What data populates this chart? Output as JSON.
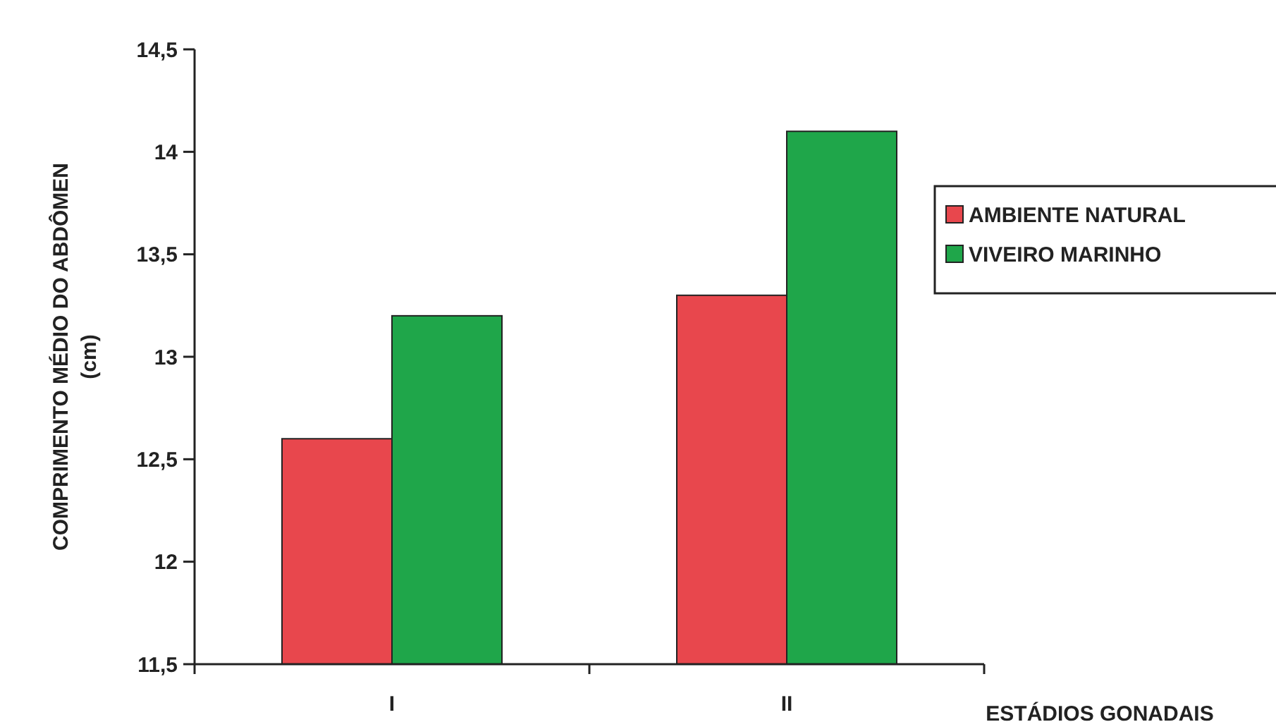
{
  "chart_data": {
    "type": "bar",
    "xlabel": "ESTÁDIOS GONADAIS",
    "ylabel": "COMPRIMENTO MÉDIO DO ABDÔMEN (cm)",
    "categories": [
      "I",
      "II"
    ],
    "series": [
      {
        "name": "AMBIENTE NATURAL",
        "color": "#e8474d",
        "values": [
          12.6,
          13.3
        ]
      },
      {
        "name": "VIVEIRO MARINHO",
        "color": "#1fa64a",
        "values": [
          13.2,
          14.1
        ]
      }
    ],
    "ylim": [
      11.5,
      14.5
    ],
    "yticks": [
      {
        "value": 11.5,
        "label": "11,5"
      },
      {
        "value": 12,
        "label": "12"
      },
      {
        "value": 12.5,
        "label": "12,5"
      },
      {
        "value": 13,
        "label": "13"
      },
      {
        "value": 13.5,
        "label": "13,5"
      },
      {
        "value": 14,
        "label": "14"
      },
      {
        "value": 14.5,
        "label": "14,5"
      }
    ],
    "grid": false,
    "legend": "right"
  }
}
